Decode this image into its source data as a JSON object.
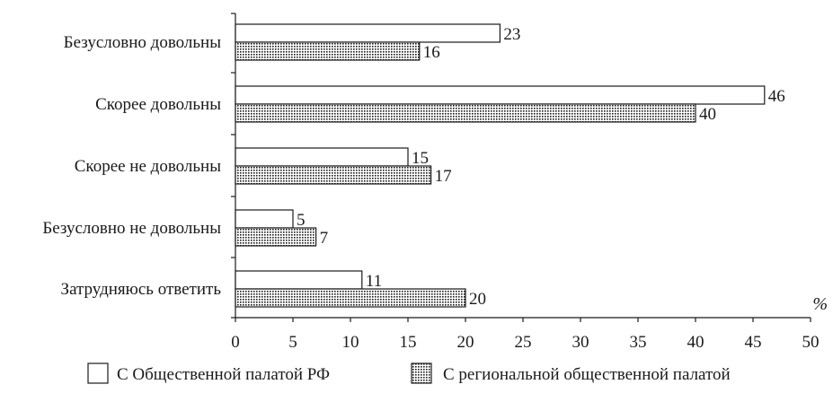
{
  "chart_data": {
    "type": "bar",
    "orientation": "horizontal",
    "categories": [
      "Безусловно довольны",
      "Скорее довольны",
      "Скорее не довольны",
      "Безусловно не довольны",
      "Затрудняюсь ответить"
    ],
    "series": [
      {
        "name": "С Общественной палатой РФ",
        "values": [
          23,
          46,
          15,
          5,
          11
        ],
        "fill": "white"
      },
      {
        "name": "С региональной общественной палатой",
        "values": [
          16,
          40,
          17,
          7,
          20
        ],
        "fill": "dotted"
      }
    ],
    "xlim": [
      0,
      50
    ],
    "xticks": [
      0,
      5,
      10,
      15,
      20,
      25,
      30,
      35,
      40,
      45,
      50
    ],
    "xunit": "%",
    "grid": false,
    "legend": "bottom"
  },
  "colors": {
    "ink": "#1a1a1a",
    "background": "#ffffff"
  }
}
